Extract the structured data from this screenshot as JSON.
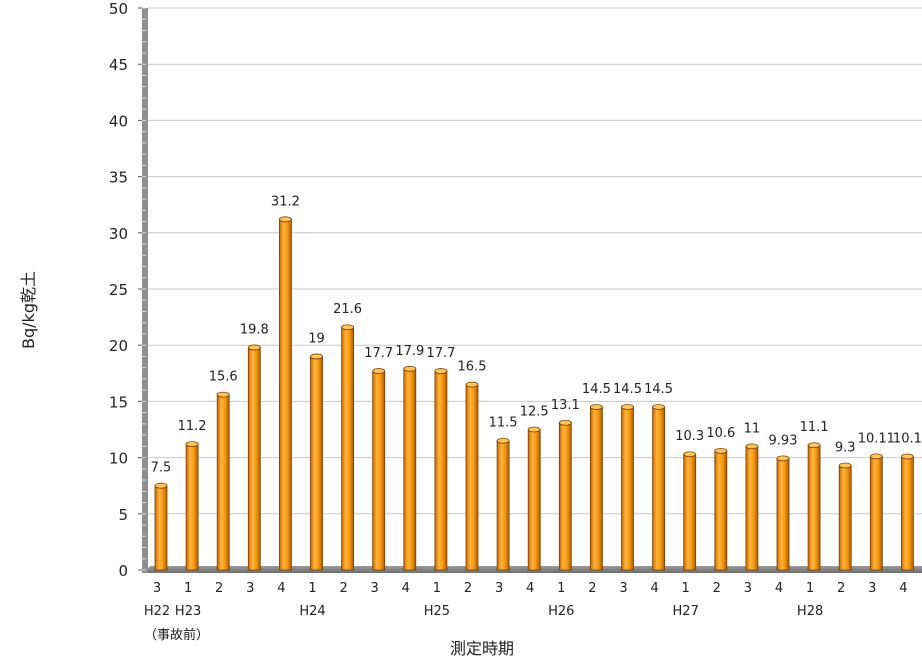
{
  "chart_data": {
    "type": "bar",
    "title": "",
    "xlabel": "測定時期",
    "ylabel": "Bq/kg乾土",
    "ylim": [
      0,
      50
    ],
    "yticks": [
      0,
      5,
      10,
      15,
      20,
      25,
      30,
      35,
      40,
      45,
      50
    ],
    "grid": true,
    "legend": "none",
    "bar_color": "#F59A12",
    "categories": [
      "3",
      "1",
      "2",
      "3",
      "4",
      "1",
      "2",
      "3",
      "4",
      "1",
      "2",
      "3",
      "4",
      "1",
      "2",
      "3",
      "4",
      "1",
      "2",
      "3",
      "4",
      "1",
      "2",
      "3",
      "4"
    ],
    "values": [
      7.5,
      11.2,
      15.6,
      19.8,
      31.2,
      19,
      21.6,
      17.7,
      17.9,
      17.7,
      16.5,
      11.5,
      12.5,
      13.1,
      14.5,
      14.5,
      14.5,
      10.3,
      10.6,
      11,
      9.93,
      11.1,
      9.3,
      10.11,
      10.1
    ],
    "value_labels": [
      "7.5",
      "11.2",
      "15.6",
      "19.8",
      "31.2",
      "19",
      "21.6",
      "17.7",
      "17.9",
      "17.7",
      "16.5",
      "11.5",
      "12.5",
      "13.1",
      "14.5",
      "14.5",
      "14.5",
      "10.3",
      "10.6",
      "11",
      "9.93",
      "11.1",
      "9.3",
      "10.11",
      "10.1"
    ],
    "year_groups": [
      {
        "label": "H22",
        "index": 0
      },
      {
        "label": "H23",
        "index": 1
      },
      {
        "label": "H24",
        "index": 5
      },
      {
        "label": "H25",
        "index": 9
      },
      {
        "label": "H26",
        "index": 13
      },
      {
        "label": "H27",
        "index": 17
      },
      {
        "label": "H28",
        "index": 21
      }
    ],
    "annotation": "（事故前）"
  }
}
